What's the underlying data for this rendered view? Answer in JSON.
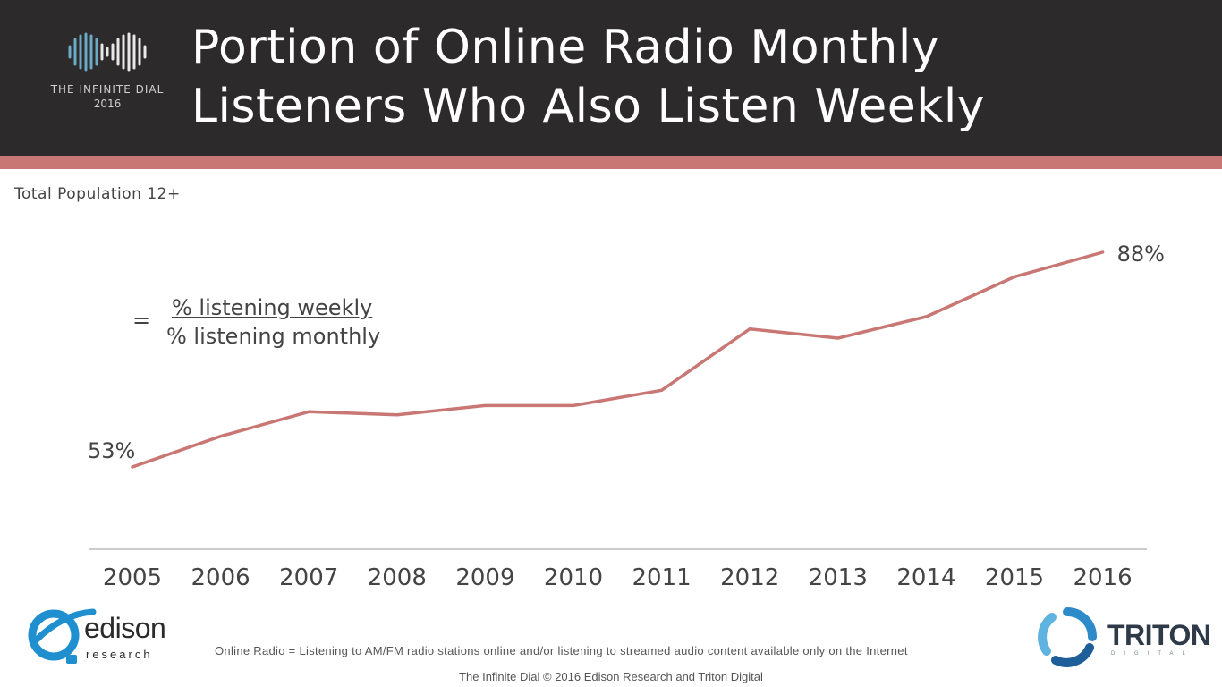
{
  "header": {
    "title_line1": "Portion of Online Radio Monthly",
    "title_line2": "Listeners Who Also Listen Weekly",
    "brand_name": "THE INFINITE DIAL",
    "brand_year": "2016"
  },
  "subtitle": "Total Population 12+",
  "formula": {
    "equals": "=",
    "numerator": "% listening weekly",
    "denominator": "% listening monthly"
  },
  "colors": {
    "header_bg": "#2d2a2b",
    "accent": "#c97775",
    "line": "#c97775",
    "axis": "#bbbbbb"
  },
  "chart_data": {
    "type": "line",
    "categories": [
      "2005",
      "2006",
      "2007",
      "2008",
      "2009",
      "2010",
      "2011",
      "2012",
      "2013",
      "2014",
      "2015",
      "2016"
    ],
    "series": [
      {
        "values": [
          53,
          58,
          62,
          61.5,
          63,
          63,
          65.5,
          75.5,
          74,
          77.5,
          84,
          88
        ]
      }
    ],
    "data_labels": [
      {
        "index": 0,
        "text": "53%"
      },
      {
        "index": 11,
        "text": "88%"
      }
    ],
    "ylim": [
      40,
      100
    ],
    "grid": false,
    "legend": "none"
  },
  "footer": {
    "note": "Online Radio = Listening to AM/FM radio stations online and/or listening to streamed audio content available only on the Internet",
    "copyright": "The Infinite Dial   © 2016 Edison Research and Triton Digital"
  },
  "logos": {
    "edison_word": "edison",
    "edison_sub": "research",
    "triton_word": "TRITON",
    "triton_sub": "DIGITAL"
  }
}
